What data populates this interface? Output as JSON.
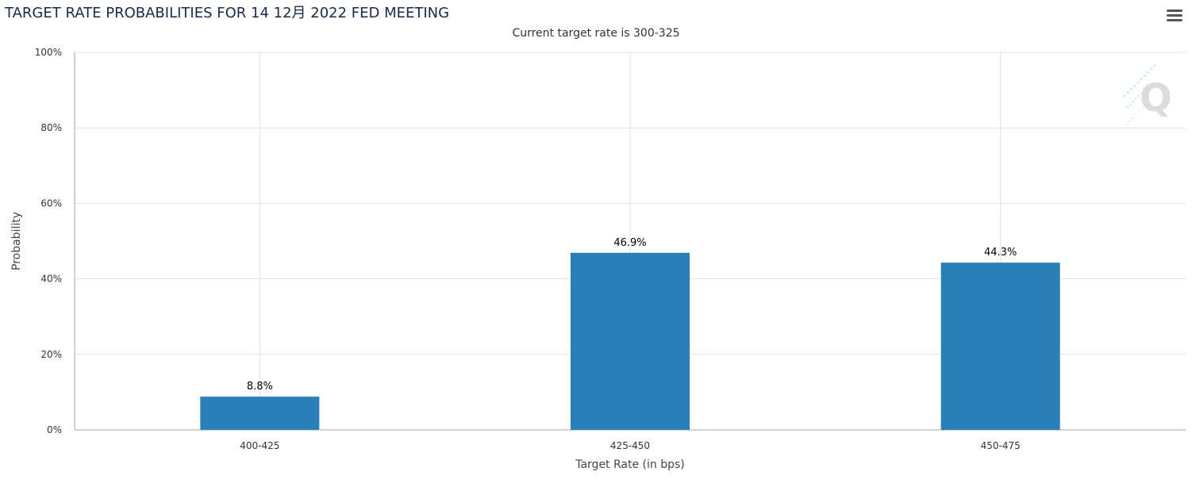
{
  "header": {
    "title": "TARGET RATE PROBABILITIES FOR 14 12月 2022 FED MEETING",
    "subtitle": "Current target rate is 300-325",
    "menu_icon": "hamburger-menu-icon",
    "watermark_icon": "q-logo-icon"
  },
  "chart_data": {
    "type": "bar",
    "title": "TARGET RATE PROBABILITIES FOR 14 12月 2022 FED MEETING",
    "subtitle": "Current target rate is 300-325",
    "xlabel": "Target Rate (in bps)",
    "ylabel": "Probability",
    "categories": [
      "400-425",
      "425-450",
      "450-475"
    ],
    "values": [
      8.8,
      46.9,
      44.3
    ],
    "data_labels": [
      "8.8%",
      "46.9%",
      "44.3%"
    ],
    "ylim": [
      0,
      100
    ],
    "yticks": [
      0,
      20,
      40,
      60,
      80,
      100
    ],
    "ytick_labels": [
      "0%",
      "20%",
      "40%",
      "60%",
      "80%",
      "100%"
    ],
    "grid": true,
    "legend": "none",
    "bar_color": "#2a7fb8",
    "grid_color": "#e0e0e0",
    "axis_color": "#a6a6a6"
  }
}
